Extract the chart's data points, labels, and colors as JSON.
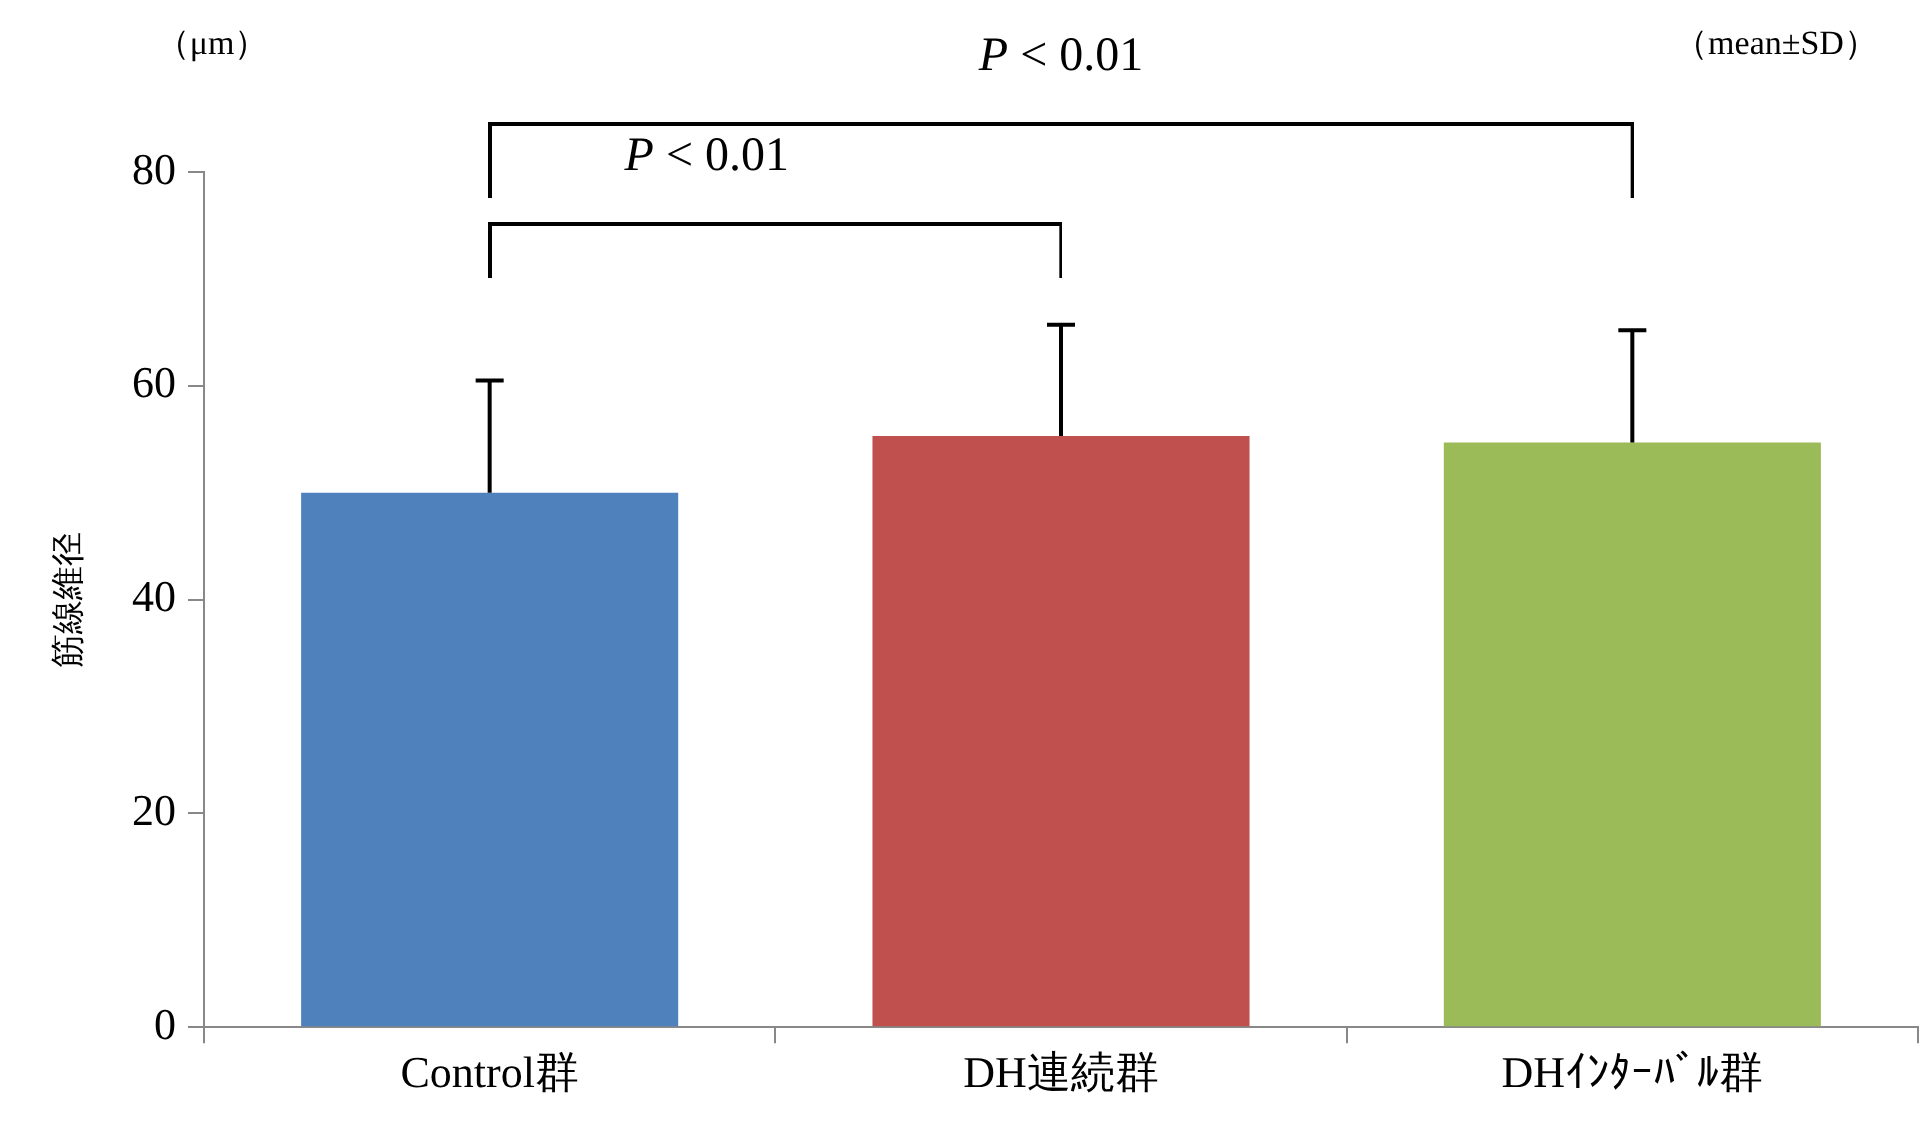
{
  "chart_data": {
    "type": "bar",
    "ylabel": "筋線維径",
    "categories": [
      "Control群",
      "DH連続群",
      "DHｲﾝﾀｰﾊﾞﾙ群"
    ],
    "values": [
      50,
      55.3,
      54.7
    ],
    "colors": [
      "#4f81bd",
      "#c0504d",
      "#9bbb59"
    ],
    "errors": [
      [
        50,
        60.5
      ],
      [
        55.3,
        65.7
      ],
      [
        54.7,
        65.2
      ]
    ],
    "ylim": [
      0,
      80
    ],
    "yticks": [
      0,
      20,
      40,
      60,
      80
    ],
    "grid": false,
    "legend": false,
    "annotations": [
      "（μm）",
      "P < 0.01",
      "P < 0.01",
      "（mean±SD）"
    ]
  }
}
